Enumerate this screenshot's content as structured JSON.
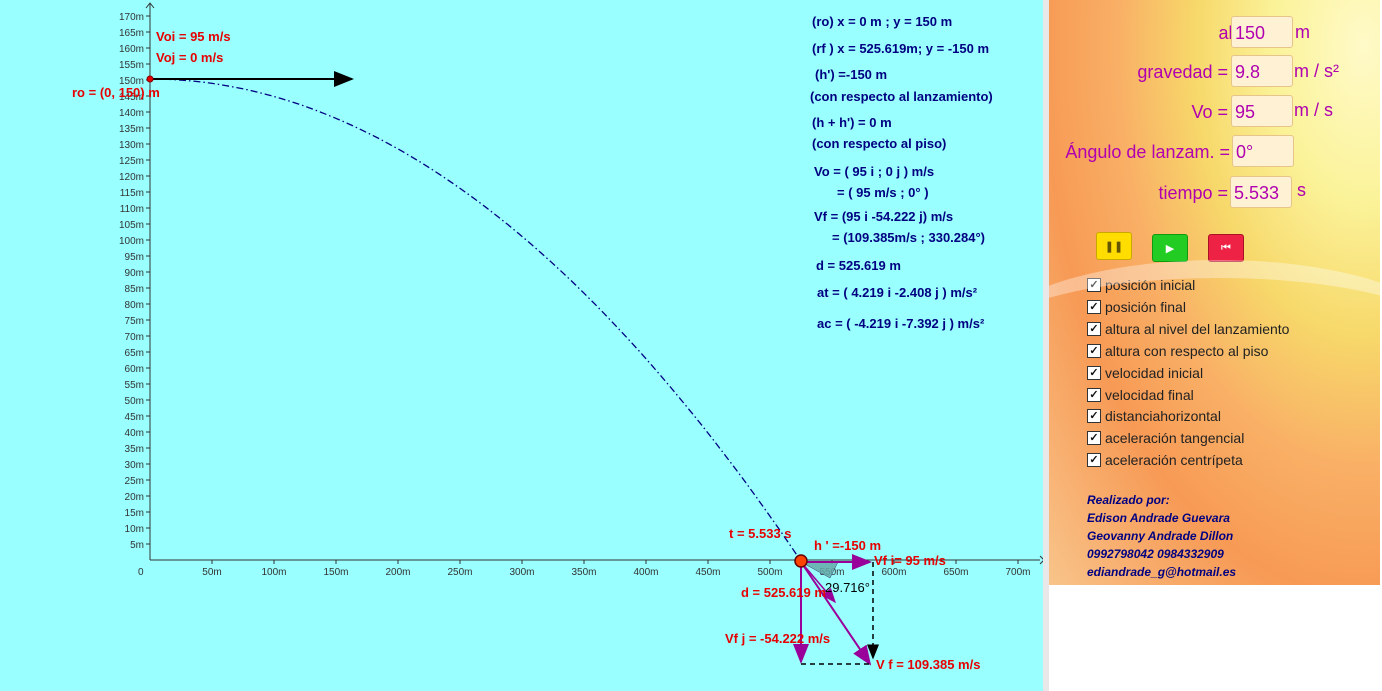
{
  "graph": {
    "y_ticks": [
      "5m",
      "10m",
      "15m",
      "20m",
      "25m",
      "30m",
      "35m",
      "40m",
      "45m",
      "50m",
      "55m",
      "60m",
      "65m",
      "70m",
      "75m",
      "80m",
      "85m",
      "90m",
      "95m",
      "100m",
      "105m",
      "110m",
      "115m",
      "120m",
      "125m",
      "130m",
      "135m",
      "140m",
      "145m",
      "150m",
      "155m",
      "160m",
      "165m",
      "170m"
    ],
    "x_ticks": [
      "50m",
      "100m",
      "150m",
      "200m",
      "250m",
      "300m",
      "350m",
      "400m",
      "450m",
      "500m",
      "550m",
      "600m",
      "650m",
      "700m"
    ],
    "origin_label": "0",
    "labels": {
      "voi": "Voi = 95 m/s",
      "voj": "Voj = 0 m/s",
      "ro": "ro = (0, 150) m",
      "t": "t = 5.533 s",
      "h": "h ' =-150 m",
      "vfi": "Vf i= 95  m/s",
      "angle": "29.716°",
      "d": "d = 525.619  m",
      "vfj": "Vf j = -54.222  m/s",
      "vf": "V f = 109.385 m/s"
    },
    "info": [
      "(ro)    x = 0 m ; y = 150 m",
      "(rf )    x = 525.619m; y = -150 m",
      "(h') =-150 m",
      "(con respecto al lanzamiento)",
      "(h + h') = 0 m",
      "(con respecto al piso)",
      "Vo = ( 95 i ; 0 j ) m/s",
      "= ( 95 m/s ; 0° )",
      "Vf = (95 i -54.222 j) m/s",
      "= (109.385m/s ; 330.284°)",
      "d = 525.619 m",
      "at = ( 4.219 i -2.408 j ) m/s²",
      "ac = ( -4.219 i -7.392 j ) m/s²"
    ],
    "colors": {
      "background": "#99ffff",
      "trajectory": "#000080",
      "red": "#e60000",
      "vector": "#990099"
    }
  },
  "panel": {
    "altura_label": "altura =",
    "altura_value": "150",
    "altura_unit": "m",
    "gravedad_label": "gravedad =",
    "gravedad_value": "9.8",
    "gravedad_unit": "m / s²",
    "vo_label": "Vo =",
    "vo_value": "95",
    "vo_unit": "m / s",
    "angulo_label": "Ángulo de lanzam. =",
    "angulo_value": "0°",
    "tiempo_label": "tiempo =",
    "tiempo_value": "5.533",
    "tiempo_unit": "s",
    "buttons": {
      "pause": "pause-icon",
      "play": "play-icon",
      "reset": "rewind-icon"
    },
    "checkboxes": [
      "posición inicial",
      "posición final",
      "altura al nivel del lanzamiento",
      "altura con respecto al piso",
      "velocidad inicial",
      "velocidad final",
      "distanciahorizontal",
      "aceleración tangencial",
      "aceleración centrípeta"
    ],
    "credits": [
      "Realizado por:",
      "Edison Andrade Guevara",
      "Geovanny Andrade Dillon",
      "0992798042   0984332909",
      "ediandrade_g@hotmail.es"
    ]
  }
}
